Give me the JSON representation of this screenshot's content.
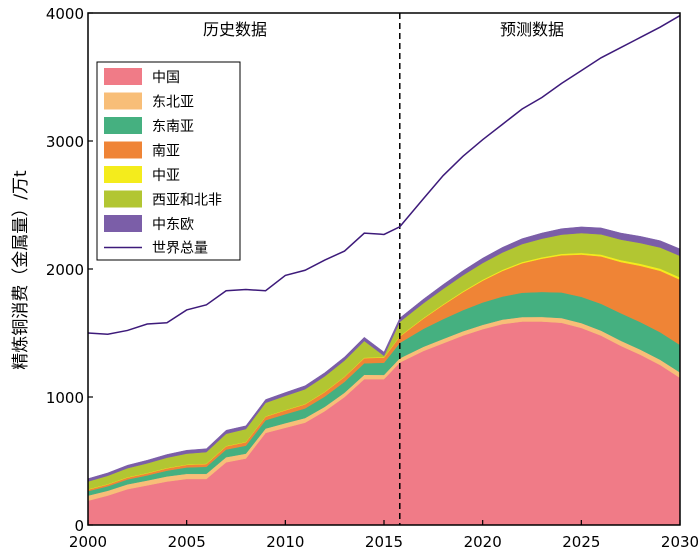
{
  "chart_data": {
    "type": "area",
    "subtype": "stacked-area-with-line",
    "ylabel": "精炼铜消费（金属量）/万t",
    "xlim": [
      2000,
      2030
    ],
    "ylim": [
      0,
      4000
    ],
    "x_ticks": [
      2000,
      2005,
      2010,
      2015,
      2020,
      2025,
      2030
    ],
    "y_ticks": [
      0,
      1000,
      2000,
      3000,
      4000
    ],
    "divider_x": 2015.8,
    "region_labels": {
      "history": "历史数据",
      "forecast": "预测数据"
    },
    "x": [
      2000,
      2001,
      2002,
      2003,
      2004,
      2005,
      2006,
      2007,
      2008,
      2009,
      2010,
      2011,
      2012,
      2013,
      2014,
      2015,
      2015.8,
      2017,
      2018,
      2019,
      2020,
      2021,
      2022,
      2023,
      2024,
      2025,
      2026,
      2027,
      2028,
      2029,
      2030
    ],
    "series": [
      {
        "name": "中国",
        "color": "#F07B87",
        "values": [
          190,
          230,
          280,
          310,
          340,
          360,
          360,
          490,
          520,
          720,
          760,
          800,
          890,
          1000,
          1140,
          1140,
          1270,
          1360,
          1420,
          1480,
          1530,
          1570,
          1590,
          1590,
          1580,
          1540,
          1480,
          1400,
          1330,
          1250,
          1150
        ]
      },
      {
        "name": "东北亚",
        "color": "#F8BE78",
        "values": [
          40,
          38,
          38,
          38,
          40,
          40,
          40,
          40,
          38,
          34,
          36,
          36,
          34,
          34,
          34,
          33,
          33,
          33,
          34,
          34,
          34,
          35,
          35,
          36,
          37,
          38,
          39,
          40,
          40,
          41,
          42
        ]
      },
      {
        "name": "东南亚",
        "color": "#45B080",
        "values": [
          35,
          35,
          38,
          40,
          45,
          50,
          55,
          60,
          62,
          65,
          70,
          75,
          80,
          85,
          90,
          95,
          120,
          140,
          155,
          165,
          175,
          180,
          190,
          195,
          200,
          205,
          210,
          215,
          215,
          215,
          215
        ]
      },
      {
        "name": "南亚",
        "color": "#EF8436",
        "values": [
          12,
          14,
          15,
          16,
          18,
          20,
          22,
          25,
          27,
          28,
          30,
          32,
          35,
          38,
          40,
          40,
          50,
          80,
          110,
          140,
          170,
          200,
          230,
          260,
          290,
          330,
          370,
          400,
          440,
          480,
          510
        ]
      },
      {
        "name": "中亚",
        "color": "#F4EC1C",
        "values": [
          3,
          3,
          3,
          3,
          3,
          3,
          3,
          3,
          3,
          3,
          3,
          3,
          3,
          3,
          4,
          4,
          4,
          5,
          6,
          7,
          8,
          9,
          10,
          11,
          12,
          13,
          14,
          15,
          16,
          17,
          18
        ]
      },
      {
        "name": "西亚和北非",
        "color": "#B2C632",
        "values": [
          60,
          65,
          70,
          75,
          80,
          85,
          90,
          95,
          100,
          105,
          110,
          115,
          120,
          125,
          130,
          10,
          110,
          115,
          120,
          125,
          130,
          135,
          140,
          145,
          150,
          155,
          158,
          160,
          162,
          165,
          168
        ]
      },
      {
        "name": "中东欧",
        "color": "#7B5EA8",
        "values": [
          22,
          22,
          23,
          24,
          25,
          26,
          26,
          27,
          25,
          25,
          26,
          27,
          28,
          28,
          29,
          29,
          30,
          32,
          34,
          36,
          38,
          40,
          42,
          44,
          46,
          48,
          50,
          51,
          52,
          53,
          54
        ]
      }
    ],
    "line": {
      "name": "世界总量",
      "color": "#3D1A7A",
      "x": [
        2000,
        2001,
        2002,
        2003,
        2004,
        2005,
        2006,
        2007,
        2008,
        2009,
        2010,
        2011,
        2012,
        2013,
        2014,
        2015,
        2015.8,
        2017,
        2018,
        2019,
        2020,
        2021,
        2022,
        2023,
        2024,
        2025,
        2026,
        2027,
        2028,
        2029,
        2030
      ],
      "values": [
        1500,
        1490,
        1520,
        1570,
        1580,
        1680,
        1720,
        1830,
        1840,
        1830,
        1950,
        1990,
        2070,
        2140,
        2280,
        2270,
        2330,
        2550,
        2730,
        2880,
        3010,
        3130,
        3250,
        3340,
        3450,
        3550,
        3650,
        3730,
        3810,
        3890,
        3980
      ]
    }
  }
}
